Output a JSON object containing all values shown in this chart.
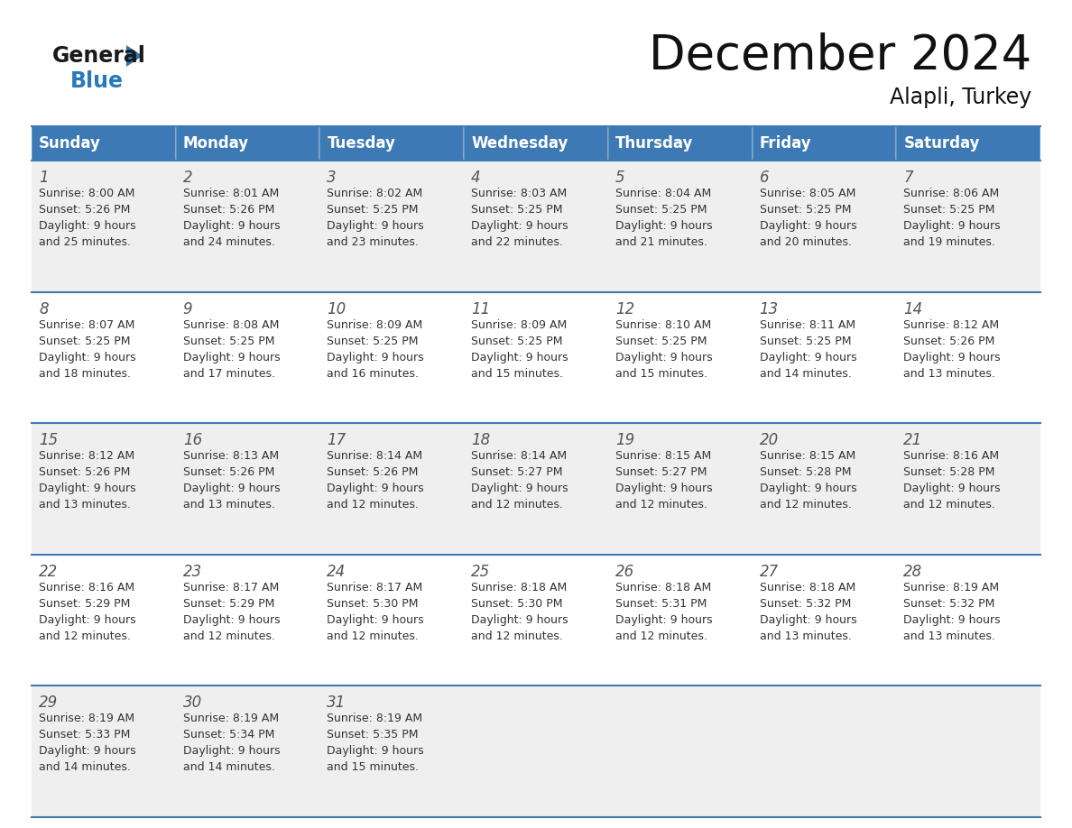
{
  "title": "December 2024",
  "subtitle": "Alapli, Turkey",
  "days_of_week": [
    "Sunday",
    "Monday",
    "Tuesday",
    "Wednesday",
    "Thursday",
    "Friday",
    "Saturday"
  ],
  "header_bg_color": "#3d7ab5",
  "header_text_color": "#ffffff",
  "row_bg_even": "#efefef",
  "row_bg_odd": "#ffffff",
  "separator_color": "#3d7ab5",
  "day_number_color": "#555555",
  "text_color": "#333333",
  "calendar_data": [
    [
      {
        "day": 1,
        "sunrise": "8:00 AM",
        "sunset": "5:26 PM",
        "daylight_hours": 9,
        "daylight_minutes": 25
      },
      {
        "day": 2,
        "sunrise": "8:01 AM",
        "sunset": "5:26 PM",
        "daylight_hours": 9,
        "daylight_minutes": 24
      },
      {
        "day": 3,
        "sunrise": "8:02 AM",
        "sunset": "5:25 PM",
        "daylight_hours": 9,
        "daylight_minutes": 23
      },
      {
        "day": 4,
        "sunrise": "8:03 AM",
        "sunset": "5:25 PM",
        "daylight_hours": 9,
        "daylight_minutes": 22
      },
      {
        "day": 5,
        "sunrise": "8:04 AM",
        "sunset": "5:25 PM",
        "daylight_hours": 9,
        "daylight_minutes": 21
      },
      {
        "day": 6,
        "sunrise": "8:05 AM",
        "sunset": "5:25 PM",
        "daylight_hours": 9,
        "daylight_minutes": 20
      },
      {
        "day": 7,
        "sunrise": "8:06 AM",
        "sunset": "5:25 PM",
        "daylight_hours": 9,
        "daylight_minutes": 19
      }
    ],
    [
      {
        "day": 8,
        "sunrise": "8:07 AM",
        "sunset": "5:25 PM",
        "daylight_hours": 9,
        "daylight_minutes": 18
      },
      {
        "day": 9,
        "sunrise": "8:08 AM",
        "sunset": "5:25 PM",
        "daylight_hours": 9,
        "daylight_minutes": 17
      },
      {
        "day": 10,
        "sunrise": "8:09 AM",
        "sunset": "5:25 PM",
        "daylight_hours": 9,
        "daylight_minutes": 16
      },
      {
        "day": 11,
        "sunrise": "8:09 AM",
        "sunset": "5:25 PM",
        "daylight_hours": 9,
        "daylight_minutes": 15
      },
      {
        "day": 12,
        "sunrise": "8:10 AM",
        "sunset": "5:25 PM",
        "daylight_hours": 9,
        "daylight_minutes": 15
      },
      {
        "day": 13,
        "sunrise": "8:11 AM",
        "sunset": "5:25 PM",
        "daylight_hours": 9,
        "daylight_minutes": 14
      },
      {
        "day": 14,
        "sunrise": "8:12 AM",
        "sunset": "5:26 PM",
        "daylight_hours": 9,
        "daylight_minutes": 13
      }
    ],
    [
      {
        "day": 15,
        "sunrise": "8:12 AM",
        "sunset": "5:26 PM",
        "daylight_hours": 9,
        "daylight_minutes": 13
      },
      {
        "day": 16,
        "sunrise": "8:13 AM",
        "sunset": "5:26 PM",
        "daylight_hours": 9,
        "daylight_minutes": 13
      },
      {
        "day": 17,
        "sunrise": "8:14 AM",
        "sunset": "5:26 PM",
        "daylight_hours": 9,
        "daylight_minutes": 12
      },
      {
        "day": 18,
        "sunrise": "8:14 AM",
        "sunset": "5:27 PM",
        "daylight_hours": 9,
        "daylight_minutes": 12
      },
      {
        "day": 19,
        "sunrise": "8:15 AM",
        "sunset": "5:27 PM",
        "daylight_hours": 9,
        "daylight_minutes": 12
      },
      {
        "day": 20,
        "sunrise": "8:15 AM",
        "sunset": "5:28 PM",
        "daylight_hours": 9,
        "daylight_minutes": 12
      },
      {
        "day": 21,
        "sunrise": "8:16 AM",
        "sunset": "5:28 PM",
        "daylight_hours": 9,
        "daylight_minutes": 12
      }
    ],
    [
      {
        "day": 22,
        "sunrise": "8:16 AM",
        "sunset": "5:29 PM",
        "daylight_hours": 9,
        "daylight_minutes": 12
      },
      {
        "day": 23,
        "sunrise": "8:17 AM",
        "sunset": "5:29 PM",
        "daylight_hours": 9,
        "daylight_minutes": 12
      },
      {
        "day": 24,
        "sunrise": "8:17 AM",
        "sunset": "5:30 PM",
        "daylight_hours": 9,
        "daylight_minutes": 12
      },
      {
        "day": 25,
        "sunrise": "8:18 AM",
        "sunset": "5:30 PM",
        "daylight_hours": 9,
        "daylight_minutes": 12
      },
      {
        "day": 26,
        "sunrise": "8:18 AM",
        "sunset": "5:31 PM",
        "daylight_hours": 9,
        "daylight_minutes": 12
      },
      {
        "day": 27,
        "sunrise": "8:18 AM",
        "sunset": "5:32 PM",
        "daylight_hours": 9,
        "daylight_minutes": 13
      },
      {
        "day": 28,
        "sunrise": "8:19 AM",
        "sunset": "5:32 PM",
        "daylight_hours": 9,
        "daylight_minutes": 13
      }
    ],
    [
      {
        "day": 29,
        "sunrise": "8:19 AM",
        "sunset": "5:33 PM",
        "daylight_hours": 9,
        "daylight_minutes": 14
      },
      {
        "day": 30,
        "sunrise": "8:19 AM",
        "sunset": "5:34 PM",
        "daylight_hours": 9,
        "daylight_minutes": 14
      },
      {
        "day": 31,
        "sunrise": "8:19 AM",
        "sunset": "5:35 PM",
        "daylight_hours": 9,
        "daylight_minutes": 15
      },
      null,
      null,
      null,
      null
    ]
  ],
  "logo_general_color": "#1a1a1a",
  "logo_blue_color": "#2a7ab8",
  "title_fontsize": 38,
  "subtitle_fontsize": 17,
  "header_fontsize": 12,
  "day_number_fontsize": 12,
  "cell_text_fontsize": 9
}
